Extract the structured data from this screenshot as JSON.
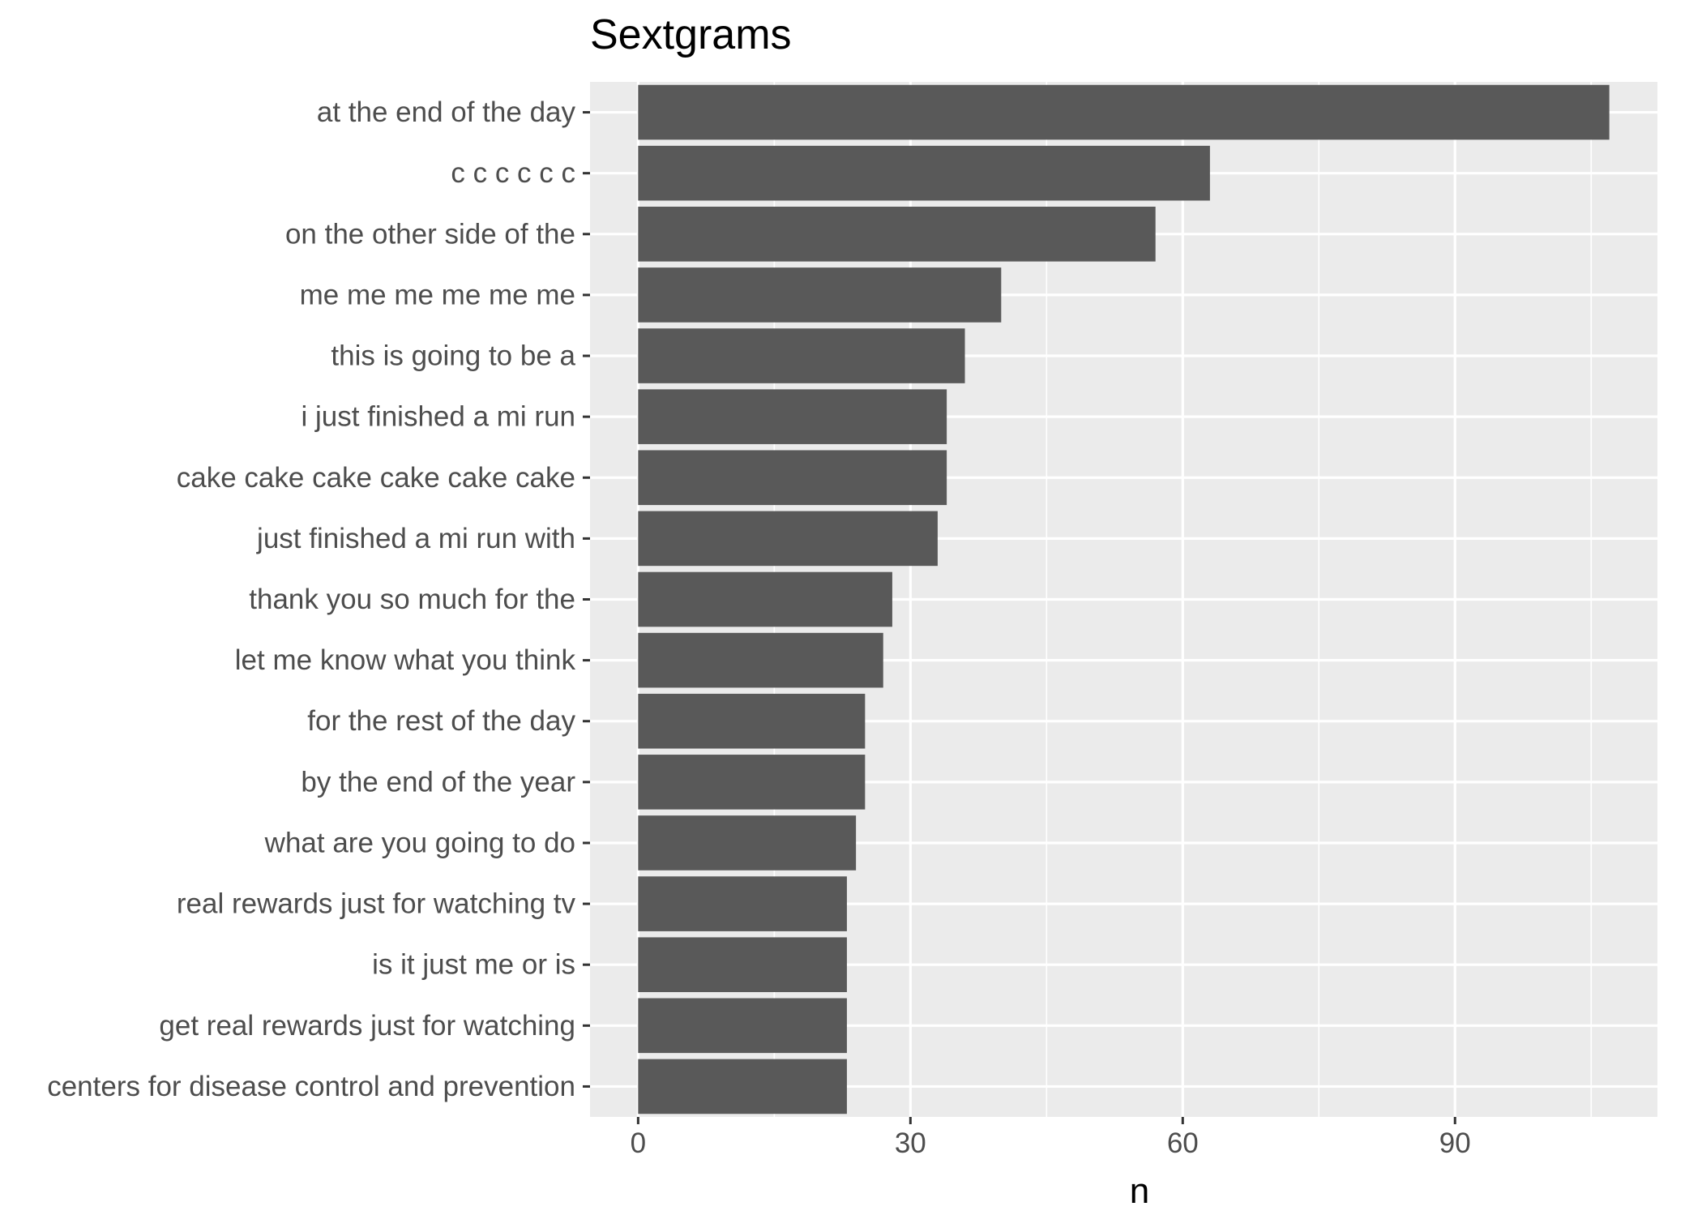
{
  "chart_data": {
    "type": "bar",
    "orientation": "horizontal",
    "title": "Sextgrams",
    "xlabel": "n",
    "ylabel": "",
    "categories": [
      "at the end of the day",
      "c c c c c c",
      "on the other side of the",
      "me me me me me me",
      "this is going to be a",
      "i just finished a mi run",
      "cake cake cake cake cake cake",
      "just finished a mi run with",
      "thank you so much for the",
      "let me know what you think",
      "for the rest of the day",
      "by the end of the year",
      "what are you going to do",
      "real rewards just for watching tv",
      "is it just me or is",
      "get real rewards just for watching",
      "centers for disease control and prevention"
    ],
    "values": [
      107,
      63,
      57,
      40,
      36,
      34,
      34,
      33,
      28,
      27,
      25,
      25,
      24,
      23,
      23,
      23,
      23
    ],
    "xlim": [
      -5.3,
      112.3
    ],
    "xticks": [
      0,
      30,
      60,
      90
    ],
    "xticks_minor": [
      15,
      45,
      75,
      105
    ],
    "grid": true,
    "legend": "none",
    "colors": {
      "bar": "#595959",
      "panel": "#ebebeb",
      "grid": "#ffffff",
      "tick_text": "#4d4d4d",
      "axis_tick": "#333333"
    }
  }
}
